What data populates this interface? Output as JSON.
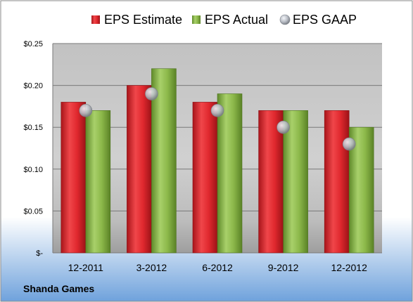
{
  "chart_data": {
    "type": "bar",
    "categories": [
      "12-2011",
      "3-2012",
      "6-2012",
      "9-2012",
      "12-2012"
    ],
    "series": [
      {
        "name": "EPS Estimate",
        "kind": "bar",
        "color": "#e0282e",
        "values": [
          0.18,
          0.2,
          0.18,
          0.17,
          0.17
        ]
      },
      {
        "name": "EPS Actual",
        "kind": "bar",
        "color": "#8cb84a",
        "values": [
          0.17,
          0.22,
          0.19,
          0.17,
          0.15
        ]
      },
      {
        "name": "EPS GAAP",
        "kind": "marker",
        "color": "#b8bcc4",
        "values": [
          0.17,
          0.19,
          0.17,
          0.15,
          0.13
        ]
      }
    ],
    "y_ticks": [
      {
        "value": 0.0,
        "label": "$-"
      },
      {
        "value": 0.05,
        "label": "$0.05"
      },
      {
        "value": 0.1,
        "label": "$0.10"
      },
      {
        "value": 0.15,
        "label": "$0.15"
      },
      {
        "value": 0.2,
        "label": "$0.20"
      },
      {
        "value": 0.25,
        "label": "$0.25"
      }
    ],
    "ylim": [
      0,
      0.25
    ],
    "grid": true,
    "legend_position": "top",
    "caption": "Shanda Games"
  }
}
